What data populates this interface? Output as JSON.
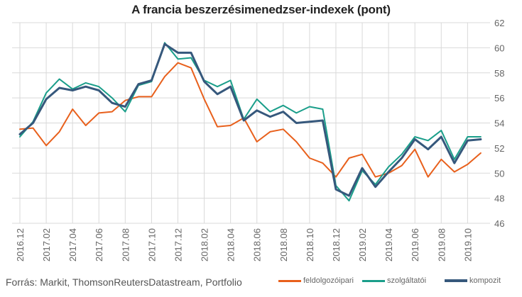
{
  "chart_data": {
    "type": "line",
    "title": "A francia beszerzésimenedzser-indexek (pont)",
    "ylim": [
      46,
      62
    ],
    "y_ticks": [
      "46",
      "48",
      "50",
      "52",
      "54",
      "56",
      "58",
      "60",
      "62"
    ],
    "y_axis_side": "right",
    "grid": true,
    "x": [
      "2016.12",
      "2017.01",
      "2017.02",
      "2017.03",
      "2017.04",
      "2017.05",
      "2017.06",
      "2017.07",
      "2017.08",
      "2017.09",
      "2017.10",
      "2017.11",
      "2017.12",
      "2018.01",
      "2018.02",
      "2018.03",
      "2018.04",
      "2018.05",
      "2018.06",
      "2018.07",
      "2018.08",
      "2018.09",
      "2018.10",
      "2018.11",
      "2018.12",
      "2019.01",
      "2019.02",
      "2019.03",
      "2019.04",
      "2019.05",
      "2019.06",
      "2019.07",
      "2019.08",
      "2019.09",
      "2019.10",
      "2019.11"
    ],
    "x_tick_labels": [
      "2016.12",
      "2017.02",
      "2017.04",
      "2017.06",
      "2017.08",
      "2017.10",
      "2017.12",
      "2018.02",
      "2018.04",
      "2018.06",
      "2018.08",
      "2018.10",
      "2018.12",
      "2019.02",
      "2019.04",
      "2019.06",
      "2019.08",
      "2019.10"
    ],
    "series": [
      {
        "name": "feldolgozóipari",
        "color": "#e8601c",
        "width": 2,
        "values": [
          53.5,
          53.6,
          52.2,
          53.3,
          55.1,
          53.8,
          54.8,
          54.9,
          55.8,
          56.1,
          56.1,
          57.7,
          58.8,
          58.4,
          55.9,
          53.7,
          53.8,
          54.4,
          52.5,
          53.3,
          53.5,
          52.5,
          51.2,
          50.8,
          49.7,
          51.2,
          51.5,
          49.7,
          50.0,
          50.6,
          51.9,
          49.7,
          51.1,
          50.1,
          50.7,
          51.6
        ]
      },
      {
        "name": "szolgáltatói",
        "color": "#1a9e8a",
        "width": 2,
        "values": [
          52.9,
          54.1,
          56.4,
          57.5,
          56.7,
          57.2,
          56.9,
          56.0,
          54.9,
          57.0,
          57.3,
          60.4,
          59.1,
          59.2,
          57.4,
          56.9,
          57.4,
          54.3,
          55.9,
          54.9,
          55.4,
          54.8,
          55.3,
          55.1,
          49.0,
          47.8,
          50.2,
          49.1,
          50.5,
          51.5,
          52.9,
          52.6,
          53.4,
          51.1,
          52.9,
          52.9
        ]
      },
      {
        "name": "kompozit",
        "color": "#36587c",
        "width": 3,
        "values": [
          53.1,
          54.0,
          55.9,
          56.8,
          56.6,
          56.9,
          56.6,
          55.6,
          55.3,
          57.1,
          57.4,
          60.3,
          59.6,
          59.6,
          57.3,
          56.3,
          56.9,
          54.2,
          55.0,
          54.5,
          54.9,
          54.0,
          54.1,
          54.2,
          48.7,
          48.2,
          50.4,
          48.9,
          50.1,
          51.2,
          52.7,
          51.9,
          52.9,
          50.8,
          52.6,
          52.7
        ]
      }
    ]
  },
  "source": "Forrás: Markit, ThomsonReutersDatastream, Portfolio"
}
